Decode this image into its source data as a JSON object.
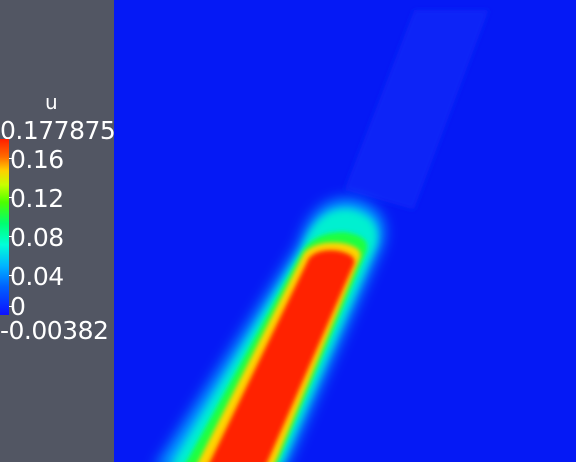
{
  "legend": {
    "title": "u",
    "max": "0.177875",
    "min": "-0.00382",
    "ticks": [
      "0.16",
      "0.12",
      "0.08",
      "0.04",
      "0"
    ]
  },
  "colors": {
    "background": "#525663",
    "field_low": "#0519f5",
    "field_high": "#ff1e00"
  }
}
